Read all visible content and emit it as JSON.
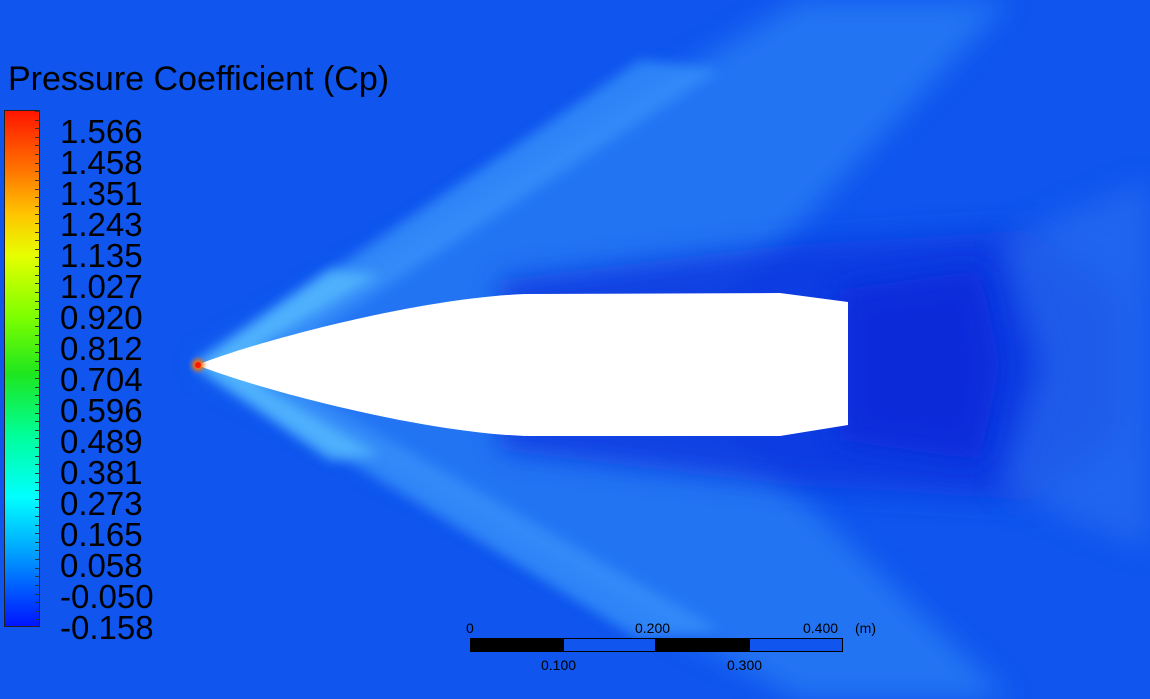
{
  "legend": {
    "title": "Pressure Coefficient (Cp)",
    "values": [
      "1.566",
      "1.458",
      "1.351",
      "1.243",
      "1.135",
      "1.027",
      "0.920",
      "0.812",
      "0.704",
      "0.596",
      "0.489",
      "0.381",
      "0.273",
      "0.165",
      "0.058",
      "-0.050",
      "-0.158"
    ],
    "colormap": [
      "#ff1500",
      "#ff7000",
      "#ffc400",
      "#e6ff00",
      "#7dff00",
      "#1ee61e",
      "#00ff9a",
      "#00ffff",
      "#00a8ff",
      "#0058ff",
      "#0015ff"
    ]
  },
  "scale_bar": {
    "top_labels": [
      "0",
      "0.200",
      "0.400"
    ],
    "bottom_labels": [
      "0.100",
      "0.300"
    ],
    "unit": "(m)"
  },
  "colors": {
    "freestream": "#0f55ee",
    "body": "#ffffff",
    "stagnation": "#ff1500"
  }
}
